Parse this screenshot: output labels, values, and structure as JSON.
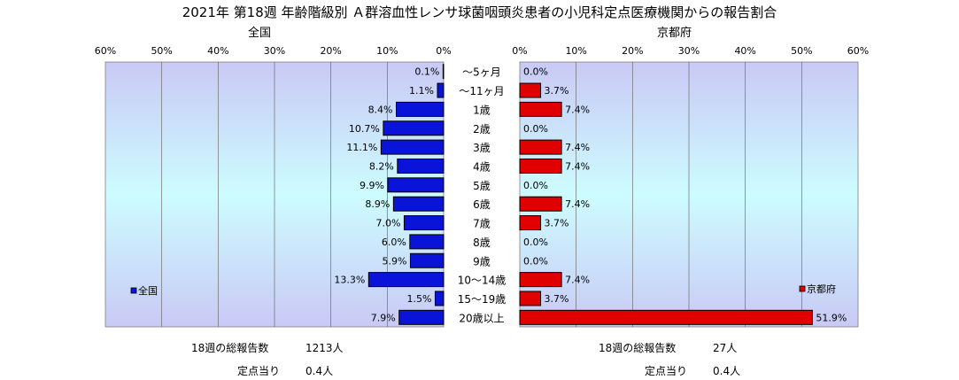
{
  "title": "2021年 第18週 年齢階級別 Ａ群溶血性レンサ球菌咽頭炎患者の小児科定点医療機関からの報告割合",
  "colors": {
    "national": "#0a14d8",
    "kyoto": "#e00000",
    "plot_bg_edge": "#c9c9f5",
    "plot_bg_mid": "#cdfcff"
  },
  "chart_data": [
    {
      "type": "bar",
      "orientation": "horizontal",
      "direction": "right-to-left",
      "title": "全国",
      "categories": [
        "～5ヶ月",
        "～11ヶ月",
        "1歳",
        "2歳",
        "3歳",
        "4歳",
        "5歳",
        "6歳",
        "7歳",
        "8歳",
        "9歳",
        "10～14歳",
        "15～19歳",
        "20歳以上"
      ],
      "series": [
        {
          "name": "全国",
          "values": [
            0.1,
            1.1,
            8.4,
            10.7,
            11.1,
            8.2,
            9.9,
            8.9,
            7.0,
            6.0,
            5.9,
            13.3,
            1.5,
            7.9
          ]
        }
      ],
      "data_labels": [
        "0.1%",
        "1.1%",
        "8.4%",
        "10.7%",
        "11.1%",
        "8.2%",
        "9.9%",
        "8.9%",
        "7.0%",
        "6.0%",
        "5.9%",
        "13.3%",
        "1.5%",
        "7.9%"
      ],
      "xlim": [
        0,
        60
      ],
      "ticks": [
        "0%",
        "10%",
        "20%",
        "30%",
        "40%",
        "50%",
        "60%"
      ],
      "grid": true,
      "legend_position": "bottom-left"
    },
    {
      "type": "bar",
      "orientation": "horizontal",
      "direction": "left-to-right",
      "title": "京都府",
      "categories": [
        "～5ヶ月",
        "～11ヶ月",
        "1歳",
        "2歳",
        "3歳",
        "4歳",
        "5歳",
        "6歳",
        "7歳",
        "8歳",
        "9歳",
        "10～14歳",
        "15～19歳",
        "20歳以上"
      ],
      "series": [
        {
          "name": "京都府",
          "values": [
            0.0,
            3.7,
            7.4,
            0.0,
            7.4,
            7.4,
            0.0,
            7.4,
            3.7,
            0.0,
            0.0,
            7.4,
            3.7,
            51.9
          ]
        }
      ],
      "data_labels": [
        "0.0%",
        "3.7%",
        "7.4%",
        "0.0%",
        "7.4%",
        "7.4%",
        "0.0%",
        "7.4%",
        "3.7%",
        "0.0%",
        "0.0%",
        "7.4%",
        "3.7%",
        "51.9%"
      ],
      "xlim": [
        0,
        60
      ],
      "ticks": [
        "0%",
        "10%",
        "20%",
        "30%",
        "40%",
        "50%",
        "60%"
      ],
      "grid": true,
      "legend_position": "bottom-right"
    }
  ],
  "footer": {
    "national": {
      "total_label": "18週の総報告数",
      "total_value": "1213人",
      "per_label": "定点当り",
      "per_value": "0.4人"
    },
    "kyoto": {
      "total_label": "18週の総報告数",
      "total_value": "27人",
      "per_label": "定点当り",
      "per_value": "0.4人"
    }
  }
}
